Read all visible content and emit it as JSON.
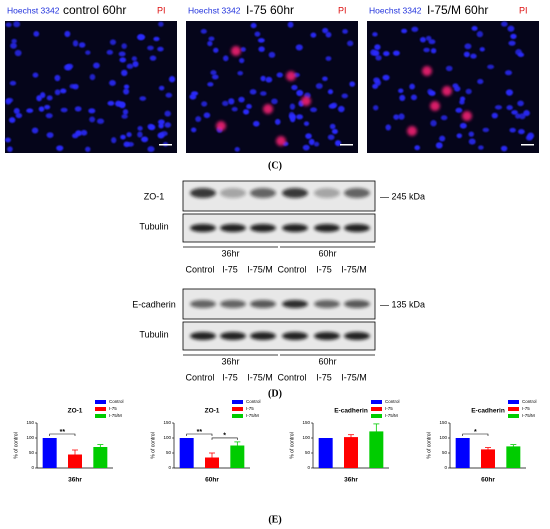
{
  "images": [
    {
      "stain1": "Hoechst 3342",
      "title": "control 60hr",
      "stain2": "PI"
    },
    {
      "stain1": "Hoechst 3342",
      "title": "I-75 60hr",
      "stain2": "PI"
    },
    {
      "stain1": "Hoechst 3342",
      "title": "I-75/M 60hr",
      "stain2": "PI"
    }
  ],
  "panel_labels": [
    "(C)",
    "(D)",
    "(E)"
  ],
  "blots": [
    {
      "protein": "ZO-1",
      "size": "— 245 kDa",
      "loading": "Tubulin",
      "groups": [
        "36hr",
        "60hr"
      ],
      "lanes": [
        "Control",
        "I-75",
        "I-75/M",
        "Control",
        "I-75",
        "I-75/M"
      ]
    },
    {
      "protein": "E-cadherin",
      "size": "— 135 kDa",
      "loading": "Tubulin",
      "groups": [
        "36hr",
        "60hr"
      ],
      "lanes": [
        "Control",
        "I-75",
        "I-75/M",
        "Control",
        "I-75",
        "I-75/M"
      ]
    }
  ],
  "chart_data": [
    {
      "type": "bar",
      "title": "ZO-1",
      "xlabel": "36hr",
      "ylabel": "% of control",
      "categories": [
        "Control",
        "I-75",
        "I-75/M"
      ],
      "values": [
        100,
        45,
        70
      ],
      "errors": [
        null,
        15,
        8
      ],
      "colors": [
        "#0000ff",
        "#ff0000",
        "#00cc00"
      ],
      "ylim": [
        0,
        150
      ],
      "yticks": [
        0,
        50,
        100,
        150
      ],
      "significance": [
        {
          "groups": [
            "Control",
            "I-75"
          ],
          "label": "**"
        }
      ]
    },
    {
      "type": "bar",
      "title": "ZO-1",
      "xlabel": "60hr",
      "ylabel": "% of control",
      "categories": [
        "Control",
        "I-75",
        "I-75/M"
      ],
      "values": [
        100,
        35,
        75
      ],
      "errors": [
        null,
        15,
        12
      ],
      "colors": [
        "#0000ff",
        "#ff0000",
        "#00cc00"
      ],
      "ylim": [
        0,
        150
      ],
      "yticks": [
        0,
        50,
        100,
        150
      ],
      "significance": [
        {
          "groups": [
            "Control",
            "I-75"
          ],
          "label": "**"
        },
        {
          "groups": [
            "I-75",
            "I-75/M"
          ],
          "label": "*"
        }
      ]
    },
    {
      "type": "bar",
      "title": "E-cadherin",
      "xlabel": "36hr",
      "ylabel": "% of control",
      "categories": [
        "Control",
        "I-75",
        "I-75/M"
      ],
      "values": [
        100,
        103,
        122
      ],
      "errors": [
        null,
        8,
        25
      ],
      "colors": [
        "#0000ff",
        "#ff0000",
        "#00cc00"
      ],
      "ylim": [
        0,
        150
      ],
      "yticks": [
        0,
        50,
        100,
        150
      ],
      "significance": []
    },
    {
      "type": "bar",
      "title": "E-cadherin",
      "xlabel": "60hr",
      "ylabel": "% of control",
      "categories": [
        "Control",
        "I-75",
        "I-75/M"
      ],
      "values": [
        100,
        62,
        72
      ],
      "errors": [
        null,
        6,
        6
      ],
      "colors": [
        "#0000ff",
        "#ff0000",
        "#00cc00"
      ],
      "ylim": [
        0,
        150
      ],
      "yticks": [
        0,
        50,
        100,
        150
      ],
      "significance": [
        {
          "groups": [
            "Control",
            "I-75"
          ],
          "label": "*"
        }
      ]
    }
  ]
}
